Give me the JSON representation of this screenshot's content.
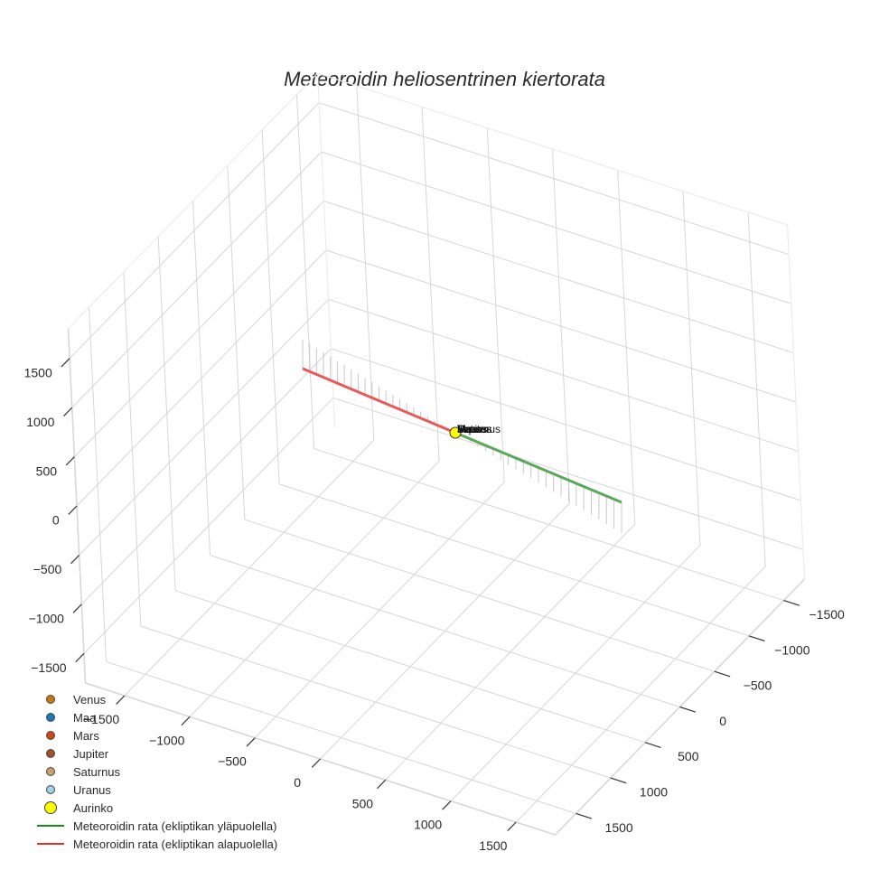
{
  "chart_data": {
    "type": "scatter3d",
    "title": "Meteoroidin heliosentrinen kiertorata",
    "xlabel": "",
    "ylabel": "",
    "zlabel": "",
    "x_ticks": [
      "−1500",
      "−1000",
      "−500",
      "0",
      "500",
      "1000",
      "1500"
    ],
    "y_ticks": [
      "−1500",
      "−1000",
      "−500",
      "0",
      "500",
      "1000",
      "1500"
    ],
    "z_ticks": [
      "1500",
      "1000",
      "500",
      "0",
      "−500",
      "−1000",
      "−1500"
    ],
    "xlim": [
      -1800,
      1800
    ],
    "ylim": [
      -1800,
      1800
    ],
    "zlim": [
      -1800,
      1800
    ],
    "grid": true,
    "legend_position": "bottom-left",
    "series": [
      {
        "name": "Venus",
        "kind": "marker",
        "color": "#c47a0e",
        "x": [
          0
        ],
        "y": [
          0
        ],
        "z": [
          0
        ]
      },
      {
        "name": "Maa",
        "kind": "marker",
        "color": "#1f77b4",
        "x": [
          0
        ],
        "y": [
          0
        ],
        "z": [
          0
        ]
      },
      {
        "name": "Mars",
        "kind": "marker",
        "color": "#d2461c",
        "x": [
          0
        ],
        "y": [
          0
        ],
        "z": [
          0
        ]
      },
      {
        "name": "Jupiter",
        "kind": "marker",
        "color": "#a0522d",
        "x": [
          0
        ],
        "y": [
          0
        ],
        "z": [
          0
        ]
      },
      {
        "name": "Saturnus",
        "kind": "marker",
        "color": "#c9a074",
        "x": [
          0
        ],
        "y": [
          0
        ],
        "z": [
          0
        ]
      },
      {
        "name": "Uranus",
        "kind": "marker",
        "color": "#9fd3e6",
        "x": [
          0
        ],
        "y": [
          0
        ],
        "z": [
          0
        ]
      },
      {
        "name": "Aurinko",
        "kind": "marker",
        "color": "#ffff00",
        "x": [
          0
        ],
        "y": [
          0
        ],
        "z": [
          0
        ]
      },
      {
        "name": "Meteoroidin rata (ekliptikan yläpuolella)",
        "kind": "line",
        "color": "#2ca02c",
        "from": [
          0,
          0,
          0
        ],
        "to": [
          1500,
          -500,
          0
        ]
      },
      {
        "name": "Meteoroidin rata (ekliptikan alapuolella)",
        "kind": "line",
        "color": "#e8302a",
        "from": [
          0,
          0,
          0
        ],
        "to": [
          -1500,
          500,
          0
        ]
      }
    ],
    "annotations": [
      "Venus",
      "Maa",
      "Mars",
      "Jupiter",
      "Saturnus",
      "Uranus"
    ]
  },
  "legend": {
    "items": [
      {
        "label": "Venus",
        "color": "#c47a0e",
        "type": "dot",
        "size": 10
      },
      {
        "label": "Maa",
        "color": "#1f77b4",
        "type": "dot",
        "size": 10
      },
      {
        "label": "Mars",
        "color": "#d2461c",
        "type": "dot",
        "size": 10
      },
      {
        "label": "Jupiter",
        "color": "#a0522d",
        "type": "dot",
        "size": 10
      },
      {
        "label": "Saturnus",
        "color": "#c9a074",
        "type": "dot",
        "size": 10
      },
      {
        "label": "Uranus",
        "color": "#9fd3e6",
        "type": "dot",
        "size": 10
      },
      {
        "label": "Aurinko",
        "color": "#ffff00",
        "type": "dot",
        "size": 14
      },
      {
        "label": "Meteoroidin rata (ekliptikan yläpuolella)",
        "color": "#1a8a1a",
        "type": "line"
      },
      {
        "label": "Meteoroidin rata (ekliptikan alapuolella)",
        "color": "#e8302a",
        "type": "line"
      }
    ]
  },
  "planet_label_text": "Uranus",
  "colors": {
    "above_track": "#5aa85a",
    "below_track": "#e85a5a",
    "sun": "#ffff00"
  }
}
